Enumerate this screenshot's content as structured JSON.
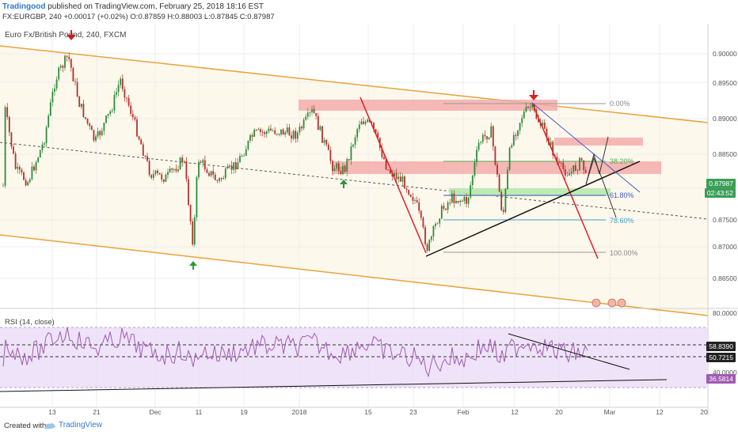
{
  "header": {
    "author": "Tradingood",
    "published_text": "published on TradingView.com, February 25, 2018 18:16 EST",
    "ohlc_line": "FX:EURGBP, 240 +0.00017 (+0.02%) O:0.87859 H:0.88003 L:0.87845 C:0.87987"
  },
  "chart": {
    "symbol_label": "Euro Fx/British Pound, 240, FXCM",
    "price_axis": [
      "0.90000",
      "0.89500",
      "0.89000",
      "0.88500",
      "0.88000",
      "0.87500",
      "0.87000",
      "0.86500"
    ],
    "last_price": "0.87987",
    "countdown": "02:43:52",
    "fib_levels": [
      "0.00%",
      "38.20%",
      "61.80%",
      "78.60%",
      "100.00%"
    ],
    "time_axis": [
      "13",
      "21",
      "Dec",
      "11",
      "19",
      "2018",
      "15",
      "23",
      "Feb",
      "12",
      "20",
      "Mar",
      "12",
      "20"
    ]
  },
  "rsi": {
    "label": "RSI (14, close)",
    "axis": [
      "80.0000",
      "60.0000",
      "40.0000"
    ],
    "value_upper": "58.8390",
    "value_mid": "50.7215",
    "value_current": "36.5814"
  },
  "footer": {
    "created_with": "Created with",
    "brand": "TradingView"
  },
  "colors": {
    "channel": "#e8a33c",
    "zone": "#f4a7a7",
    "green_zone": "#b8e8b0",
    "rsi_line": "#a05bb3",
    "rsi_band": "#eadcf6",
    "current_price_bg": "#3a9e56"
  }
}
